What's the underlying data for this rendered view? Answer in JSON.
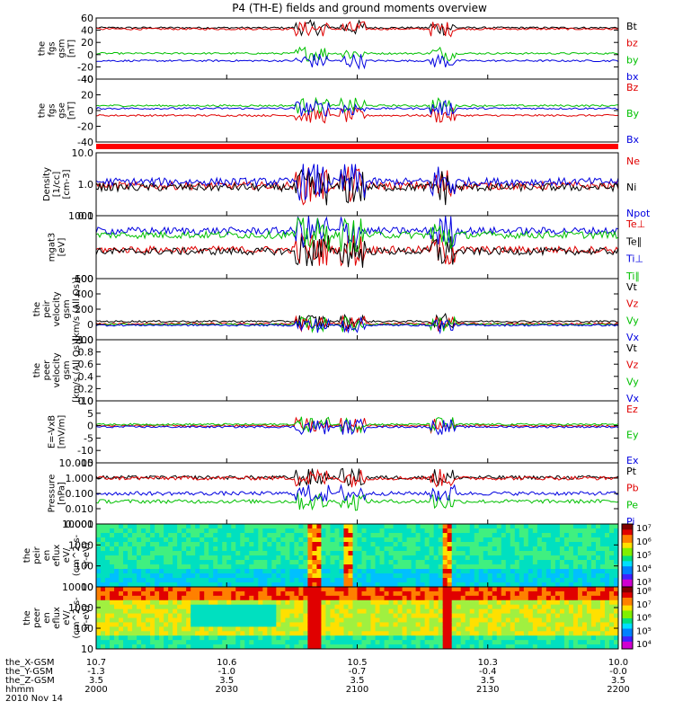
{
  "title": "P4 (TH-E) fields and ground moments overview",
  "colors": {
    "black": "#000000",
    "red": "#e00000",
    "green": "#00c000",
    "blue": "#0000e0"
  },
  "chart_data": {
    "type": "line",
    "x_ticks": [
      "2000",
      "2030",
      "2100",
      "2130",
      "2200"
    ],
    "orbit_rows": [
      {
        "label": "the_X-GSM",
        "values": [
          "10.7",
          "10.6",
          "10.5",
          "10.3",
          "10.0"
        ]
      },
      {
        "label": "the_Y-GSM",
        "values": [
          "-1.3",
          "-1.0",
          "-0.7",
          "-0.4",
          "-0.0"
        ]
      },
      {
        "label": "the_Z-GSM",
        "values": [
          "3.5",
          "3.5",
          "3.5",
          "3.5",
          "3.5"
        ]
      },
      {
        "label": "hhmm",
        "values": [
          "2000",
          "2030",
          "2100",
          "2130",
          "2200"
        ]
      }
    ],
    "date": "2010 Nov 14",
    "panels": [
      {
        "id": "fgs-gsm",
        "ylabel": [
          "the",
          "fgs",
          "gsm",
          "[nT]"
        ],
        "scale": "linear",
        "ylim": [
          -40,
          60
        ],
        "ticks": [
          "-40",
          "-20",
          "0",
          "20",
          "40",
          "60"
        ],
        "legend": [
          {
            "text": "Bt",
            "color": "black"
          },
          {
            "text": "bz",
            "color": "red"
          },
          {
            "text": "by",
            "color": "green"
          },
          {
            "text": "bx",
            "color": "blue"
          }
        ],
        "series": [
          {
            "name": "Bt",
            "color": "black",
            "base": 44
          },
          {
            "name": "bz",
            "color": "red",
            "base": 42
          },
          {
            "name": "by",
            "color": "green",
            "base": 2
          },
          {
            "name": "bx",
            "color": "blue",
            "base": -10
          }
        ]
      },
      {
        "id": "fgs-gse",
        "ylabel": [
          "the",
          "fgs",
          "gse",
          "[nT]"
        ],
        "scale": "linear",
        "ylim": [
          -50,
          40
        ],
        "ticks": [
          "-40",
          "-20",
          "0",
          "20",
          "40"
        ],
        "legend": [
          {
            "text": "Bz",
            "color": "red"
          },
          {
            "text": "By",
            "color": "green"
          },
          {
            "text": "Bx",
            "color": "blue"
          }
        ],
        "series": [
          {
            "name": "Bz",
            "color": "red",
            "base": -12
          },
          {
            "name": "By",
            "color": "green",
            "base": 2
          },
          {
            "name": "Bx",
            "color": "blue",
            "base": -2
          }
        ]
      },
      {
        "id": "density",
        "ylabel": [
          "Density",
          "[1/cc]",
          "[cm-3]"
        ],
        "scale": "log",
        "ylim": [
          0.1,
          10
        ],
        "ticks": [
          "0.1",
          "1.0",
          "10.0"
        ],
        "legend": [
          {
            "text": "Ne",
            "color": "red"
          },
          {
            "text": "Ni",
            "color": "black"
          },
          {
            "text": "Npot",
            "color": "blue"
          }
        ],
        "series": [
          {
            "name": "Ne",
            "color": "red",
            "base": 0.9
          },
          {
            "name": "Ni",
            "color": "black",
            "base": 0.8
          },
          {
            "name": "Npot",
            "color": "blue",
            "base": 1.2
          }
        ]
      },
      {
        "id": "temperature",
        "ylabel": [
          "mgat3",
          "[eV]"
        ],
        "scale": "log",
        "ylim": [
          40,
          6000
        ],
        "ticks": [
          "100",
          "1000"
        ],
        "legend": [
          {
            "text": "Te⊥",
            "color": "red"
          },
          {
            "text": "Te∥",
            "color": "black"
          },
          {
            "text": "Ti⊥",
            "color": "blue"
          },
          {
            "text": "Ti∥",
            "color": "green"
          }
        ],
        "series": [
          {
            "name": "Te⊥",
            "color": "red",
            "base": 400
          },
          {
            "name": "Te∥",
            "color": "black",
            "base": 350
          },
          {
            "name": "Ti⊥",
            "color": "blue",
            "base": 1800
          },
          {
            "name": "Ti∥",
            "color": "green",
            "base": 1300
          }
        ]
      },
      {
        "id": "peir-velocity",
        "ylabel": [
          "the",
          "peir",
          "velocity",
          "gsm",
          "[km/s (All Qs)]"
        ],
        "scale": "linear",
        "ylim": [
          -200,
          600
        ],
        "ticks": [
          "200",
          "0",
          "200",
          "400",
          "600"
        ],
        "legend": [
          {
            "text": "Vt",
            "color": "black"
          },
          {
            "text": "Vz",
            "color": "red"
          },
          {
            "text": "Vy",
            "color": "green"
          },
          {
            "text": "Vx",
            "color": "blue"
          }
        ],
        "series": [
          {
            "name": "Vt",
            "color": "black",
            "base": 40
          },
          {
            "name": "Vz",
            "color": "red",
            "base": 10
          },
          {
            "name": "Vy",
            "color": "green",
            "base": 0
          },
          {
            "name": "Vx",
            "color": "blue",
            "base": -10
          }
        ]
      },
      {
        "id": "peer-velocity",
        "ylabel": [
          "the",
          "peer",
          "velocity",
          "gsm",
          "[km/s (All Qs)]"
        ],
        "scale": "linear",
        "ylim": [
          0,
          1
        ],
        "ticks": [
          "0.0",
          "0.2",
          "0.4",
          "0.6",
          "0.8",
          "1.0"
        ],
        "legend": [
          {
            "text": "Vt",
            "color": "black"
          },
          {
            "text": "Vz",
            "color": "red"
          },
          {
            "text": "Vy",
            "color": "green"
          },
          {
            "text": "Vx",
            "color": "blue"
          }
        ],
        "series": []
      },
      {
        "id": "efield",
        "ylabel": [
          "E=-VxB",
          "[mV/m]"
        ],
        "scale": "linear",
        "ylim": [
          -15,
          10
        ],
        "ticks": [
          "-15",
          "-10",
          "-5",
          "0",
          "5",
          "10"
        ],
        "legend": [
          {
            "text": "Ez",
            "color": "red"
          },
          {
            "text": "Ey",
            "color": "green"
          },
          {
            "text": "Ex",
            "color": "blue"
          }
        ],
        "series": [
          {
            "name": "Ez",
            "color": "red",
            "base": 0
          },
          {
            "name": "Ey",
            "color": "green",
            "base": 0.5
          },
          {
            "name": "Ex",
            "color": "blue",
            "base": -0.5
          }
        ]
      },
      {
        "id": "pressure",
        "ylabel": [
          "Pressure",
          "[nPa]"
        ],
        "scale": "log",
        "ylim": [
          0.001,
          10
        ],
        "ticks": [
          "0.001",
          "0.010",
          "0.100",
          "1.000",
          "10.000"
        ],
        "legend": [
          {
            "text": "Pt",
            "color": "black"
          },
          {
            "text": "Pb",
            "color": "red"
          },
          {
            "text": "Pe",
            "color": "green"
          },
          {
            "text": "Pi",
            "color": "blue"
          }
        ],
        "series": [
          {
            "name": "Pt",
            "color": "black",
            "base": 1.1
          },
          {
            "name": "Pb",
            "color": "red",
            "base": 1.0
          },
          {
            "name": "Pe",
            "color": "green",
            "base": 0.03
          },
          {
            "name": "Pi",
            "color": "blue",
            "base": 0.1
          }
        ]
      },
      {
        "id": "peir-spec",
        "type": "heatmap",
        "ylabel": [
          "the",
          "peir",
          "en",
          "eflux",
          "eV/",
          "(cm^2-s-",
          "sr-eV)"
        ],
        "scale": "log",
        "ylim": [
          7,
          20000
        ],
        "ticks": [
          "10",
          "100",
          "1000",
          "10000"
        ],
        "colorbar_ticks": [
          "10³",
          "10⁴",
          "10⁵",
          "10⁶",
          "10⁷"
        ]
      },
      {
        "id": "peer-spec",
        "type": "heatmap",
        "ylabel": [
          "the",
          "peer",
          "en",
          "eflux",
          "eV/",
          "(cm^2-s-",
          "sr-eV)"
        ],
        "scale": "log",
        "ylim": [
          7,
          20000
        ],
        "ticks": [
          "10",
          "100",
          "1000",
          "10000"
        ],
        "colorbar_ticks": [
          "10⁴",
          "10⁵",
          "10⁶",
          "10⁷",
          "10⁸"
        ]
      }
    ]
  }
}
